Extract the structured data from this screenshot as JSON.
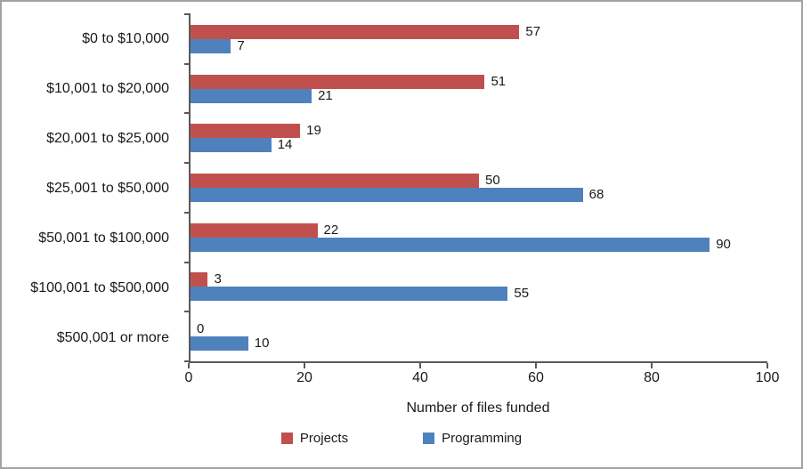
{
  "chart_data": {
    "type": "bar",
    "orientation": "horizontal",
    "title": "",
    "xlabel": "Number of files funded",
    "ylabel": "",
    "xlim": [
      0,
      100
    ],
    "xticks": [
      0,
      20,
      40,
      60,
      80,
      100
    ],
    "grid": false,
    "legend_position": "bottom",
    "categories": [
      "$0 to $10,000",
      "$10,001 to $20,000",
      "$20,001 to $25,000",
      "$25,001 to $50,000",
      "$50,001 to $100,000",
      "$100,001 to $500,000",
      "$500,001 or more"
    ],
    "series": [
      {
        "name": "Projects",
        "color": "#C0504D",
        "values": [
          57,
          51,
          19,
          50,
          22,
          3,
          0
        ]
      },
      {
        "name": "Programming",
        "color": "#4F81BD",
        "values": [
          7,
          21,
          14,
          68,
          90,
          55,
          10
        ]
      }
    ]
  }
}
